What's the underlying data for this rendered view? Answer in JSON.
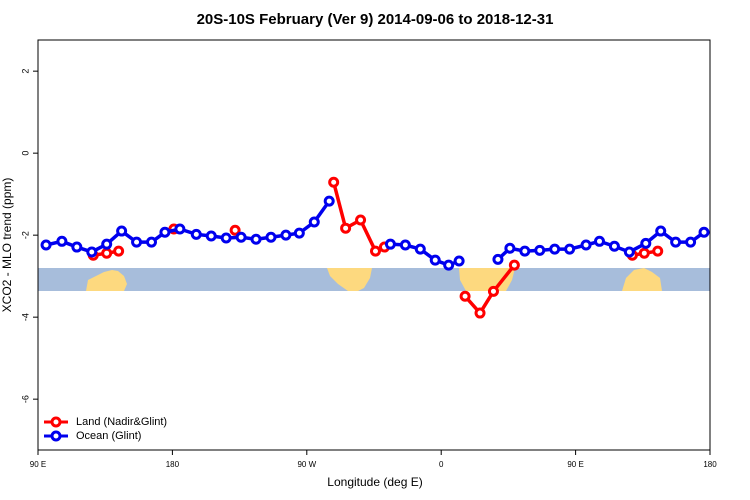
{
  "chart_data": {
    "type": "line",
    "title": "20S-10S February (Ver 9)   2014-09-06 to 2018-12-31",
    "x_label": "Longitude (deg E)",
    "y_label": "XCO2 - MLO trend (ppm)",
    "xlim": [
      90,
      540
    ],
    "xticks": [
      {
        "value": 90,
        "label": "90 E"
      },
      {
        "value": 180,
        "label": "180"
      },
      {
        "value": 270,
        "label": "90 W"
      },
      {
        "value": 360,
        "label": "0"
      },
      {
        "value": 450,
        "label": "90 E"
      },
      {
        "value": 540,
        "label": "180"
      }
    ],
    "ylim": [
      -7.24,
      2.76
    ],
    "yticks": [
      -6,
      -4,
      -2,
      0,
      2
    ],
    "legend": "bottom-left",
    "series": [
      {
        "name": "Land (Nadir&Glint)",
        "color": "#ff0000",
        "x": [
          127,
          136,
          144,
          null,
          181,
          null,
          222,
          null,
          288,
          296,
          306,
          316,
          322,
          null,
          376,
          386,
          395,
          409,
          null,
          488,
          496,
          505
        ],
        "values": [
          -2.49,
          -2.44,
          -2.39,
          null,
          -1.85,
          null,
          -1.88,
          null,
          -0.71,
          -1.83,
          -1.63,
          -2.39,
          -2.29,
          null,
          -3.49,
          -3.9,
          -3.37,
          -2.73,
          null,
          -2.49,
          -2.44,
          -2.39
        ]
      },
      {
        "name": "Ocean (Glint)",
        "color": "#0000ee",
        "x": [
          95.4,
          106,
          116,
          126,
          136,
          146,
          156,
          166,
          175,
          185,
          196,
          206,
          216,
          226,
          236,
          246,
          256,
          265,
          275,
          285,
          null,
          326,
          336,
          346,
          356,
          365,
          372,
          null,
          398,
          406,
          416,
          426,
          436,
          446,
          457,
          466,
          476,
          486,
          497,
          507,
          517,
          527,
          536
        ],
        "values": [
          -2.24,
          -2.15,
          -2.29,
          -2.41,
          -2.22,
          -1.9,
          -2.17,
          -2.17,
          -1.93,
          -1.85,
          -1.98,
          -2.02,
          -2.07,
          -2.05,
          -2.1,
          -2.05,
          -2.0,
          -1.95,
          -1.68,
          -1.17,
          null,
          -2.22,
          -2.24,
          -2.34,
          -2.61,
          -2.73,
          -2.63,
          null,
          -2.59,
          -2.32,
          -2.39,
          -2.37,
          -2.34,
          -2.34,
          -2.24,
          -2.15,
          -2.27,
          -2.41,
          -2.2,
          -1.9,
          -2.17,
          -2.17,
          -1.93
        ]
      }
    ]
  }
}
